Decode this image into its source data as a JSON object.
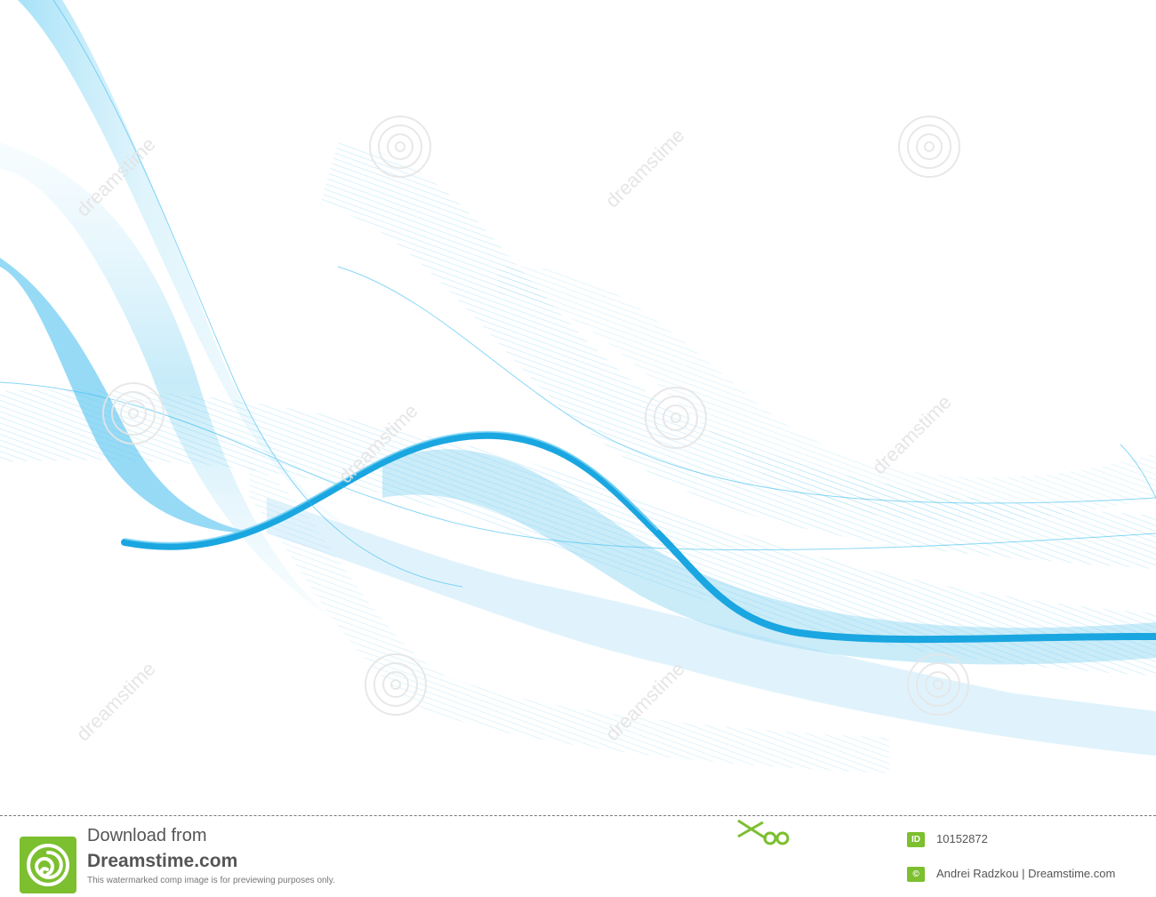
{
  "footer": {
    "download_line1": "Download from",
    "download_line2": "Dreamstime.com",
    "notice": "This watermarked comp image is for previewing purposes only.",
    "id_badge": "ID",
    "image_id": "10152872",
    "copyright_badge": "©",
    "credit": "Andrei Radzkou | Dreamstime.com"
  },
  "watermark": {
    "text": "dreamstime"
  },
  "colors": {
    "wave_primary": "#1aa6e0",
    "wave_light": "#9fdcf5",
    "logo_green": "#7cbf2f",
    "footer_text": "#555555"
  },
  "icons": [
    "dreamstime-logo-icon",
    "scissors-icon",
    "id-badge-icon",
    "copyright-icon"
  ]
}
